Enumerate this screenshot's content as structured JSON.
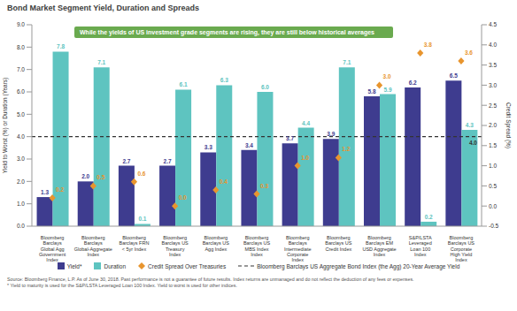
{
  "chart_data": {
    "type": "bar",
    "title": "Bond Market Segment Yield, Duration and Spreads",
    "annotation": "While the yields of US investment grade segments are rising, they are still below historical averages",
    "y_label": "Yield to Worst (%) or Duration (Years)",
    "y2_label": "Credit Spread (%)",
    "categories": [
      "Bloomberg Barclays Global Agg Government Index",
      "Bloomberg Barclays Global-Aggregate Index",
      "Bloomberg Barclays FRN < 5yr Index",
      "Bloomberg Barclays US Treasury Index",
      "Bloomberg Barclays US Agg Index",
      "Bloomberg Barclays US MBS Index Index",
      "Bloomberg Barclays Intermediate Corporate Index",
      "Bloomberg Barclays US Credit Index",
      "Bloomberg Barclays EM USD Aggregate Index",
      "S&P/LSTA Leveraged Loan 100 Index",
      "Bloomberg Barclays US Corporate High Yield Index"
    ],
    "series": [
      {
        "name": "Yield*",
        "color": "#3e3c8f",
        "values": [
          1.3,
          2.0,
          2.7,
          2.7,
          3.3,
          3.4,
          3.7,
          3.9,
          5.8,
          6.2,
          6.5
        ],
        "value_labels": [
          "1.3",
          "2.0",
          "2.7",
          "2.7",
          "3.3",
          "3.4",
          "3.7",
          "3.9",
          "5.8",
          "6.2",
          "6.5"
        ]
      },
      {
        "name": "Duration",
        "color": "#5ec4c0",
        "values": [
          7.8,
          7.1,
          0.1,
          6.1,
          6.3,
          6.0,
          4.4,
          7.1,
          5.9,
          0.2,
          4.3
        ],
        "value_labels": [
          "7.8",
          "7.1",
          "0.1",
          "6.1",
          "6.3",
          "6.0",
          "4.4",
          "7.1",
          "5.9",
          "0.2",
          "4.3"
        ]
      },
      {
        "name": "Credit Spread Over Treasuries",
        "type": "scatter",
        "marker": "diamond",
        "axis": "y2",
        "color": "#e8952e",
        "values": [
          0.2,
          0.5,
          0.6,
          0.0,
          0.4,
          0.3,
          1.0,
          1.2,
          3.0,
          3.8,
          3.6
        ],
        "value_labels": [
          "0.2",
          "0.5",
          "0.6",
          "0.0",
          "0.4",
          "0.3",
          "1.0",
          "1.2",
          "3.0",
          "3.8",
          "3.6"
        ]
      }
    ],
    "reference_line": {
      "name": "Bloomberg Barclays US Aggregate Bond Index (the Agg) 20-Year Average Yield",
      "value": 4.0,
      "label": "4.0",
      "line_style": "dashed",
      "color": "#333333"
    },
    "ylim": [
      0,
      9
    ],
    "yticks": [
      {
        "value": 0,
        "label": "0.0"
      },
      {
        "value": 1,
        "label": "1.0"
      },
      {
        "value": 2,
        "label": "2.0"
      },
      {
        "value": 3,
        "label": "3.0"
      },
      {
        "value": 4,
        "label": "4.0"
      },
      {
        "value": 5,
        "label": "5.0"
      },
      {
        "value": 6,
        "label": "6.0"
      },
      {
        "value": 7,
        "label": "7.0"
      },
      {
        "value": 8,
        "label": "8.0"
      },
      {
        "value": 9,
        "label": "9.0"
      }
    ],
    "y2lim": [
      -0.5,
      4.5
    ],
    "y2ticks": [
      -0.5,
      {
        "value": 0,
        "label": "0.0"
      },
      0.5,
      {
        "value": 1,
        "label": "1.0"
      },
      1.5,
      {
        "value": 2,
        "label": "2.0"
      },
      2.5,
      {
        "value": 3,
        "label": "3.0"
      },
      3.5,
      {
        "value": 4,
        "label": "4.0"
      },
      4.5
    ],
    "data_labels": true,
    "grid": false,
    "legend": "bottom",
    "footnotes": [
      "Source: Bloomberg Finance, L.P. As of June 30, 2018. Past performance is not a guarantee of future results. Index returns are unmanaged and do not reflect the deduction of any fees or expenses.",
      "* Yield to maturity is used for the S&P/LSTA Leveraged Loan 100 Index. Yield to worst is used for other indices."
    ]
  }
}
